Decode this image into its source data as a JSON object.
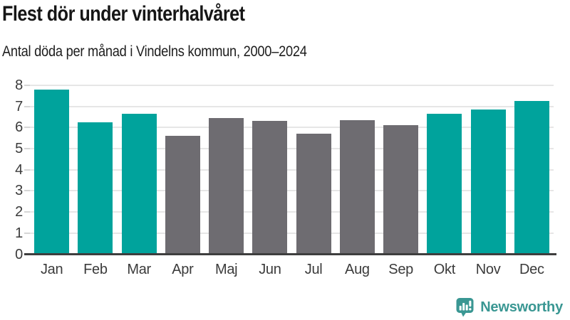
{
  "header": {
    "title": "Flest dör under vinterhalvåret",
    "subtitle": "Antal döda per månad i Vindelns kommun, 2000–2024"
  },
  "chart_data": {
    "type": "bar",
    "title": "Flest dör under vinterhalvåret",
    "subtitle": "Antal döda per månad i Vindelns kommun, 2000–2024",
    "categories": [
      "Jan",
      "Feb",
      "Mar",
      "Apr",
      "Maj",
      "Jun",
      "Jul",
      "Aug",
      "Sep",
      "Okt",
      "Nov",
      "Dec"
    ],
    "values": [
      7.8,
      6.25,
      6.65,
      5.6,
      6.45,
      6.3,
      5.7,
      6.35,
      6.1,
      6.65,
      6.85,
      7.25
    ],
    "bar_color_keys": [
      "highlight",
      "highlight",
      "highlight",
      "base",
      "base",
      "base",
      "base",
      "base",
      "base",
      "highlight",
      "highlight",
      "highlight"
    ],
    "colors": {
      "highlight": "#00a39c",
      "base": "#6e6c71"
    },
    "xlabel": "",
    "ylabel": "",
    "ylim": [
      0,
      8
    ],
    "yticks": [
      0,
      1,
      2,
      3,
      4,
      5,
      6,
      7,
      8
    ],
    "grid": true,
    "legend": false
  },
  "footer": {
    "brand": "Newsworthy",
    "brand_color": "#3a9793",
    "logo_icon": "newsworthy-speech-bubble-bar-chart-icon"
  }
}
